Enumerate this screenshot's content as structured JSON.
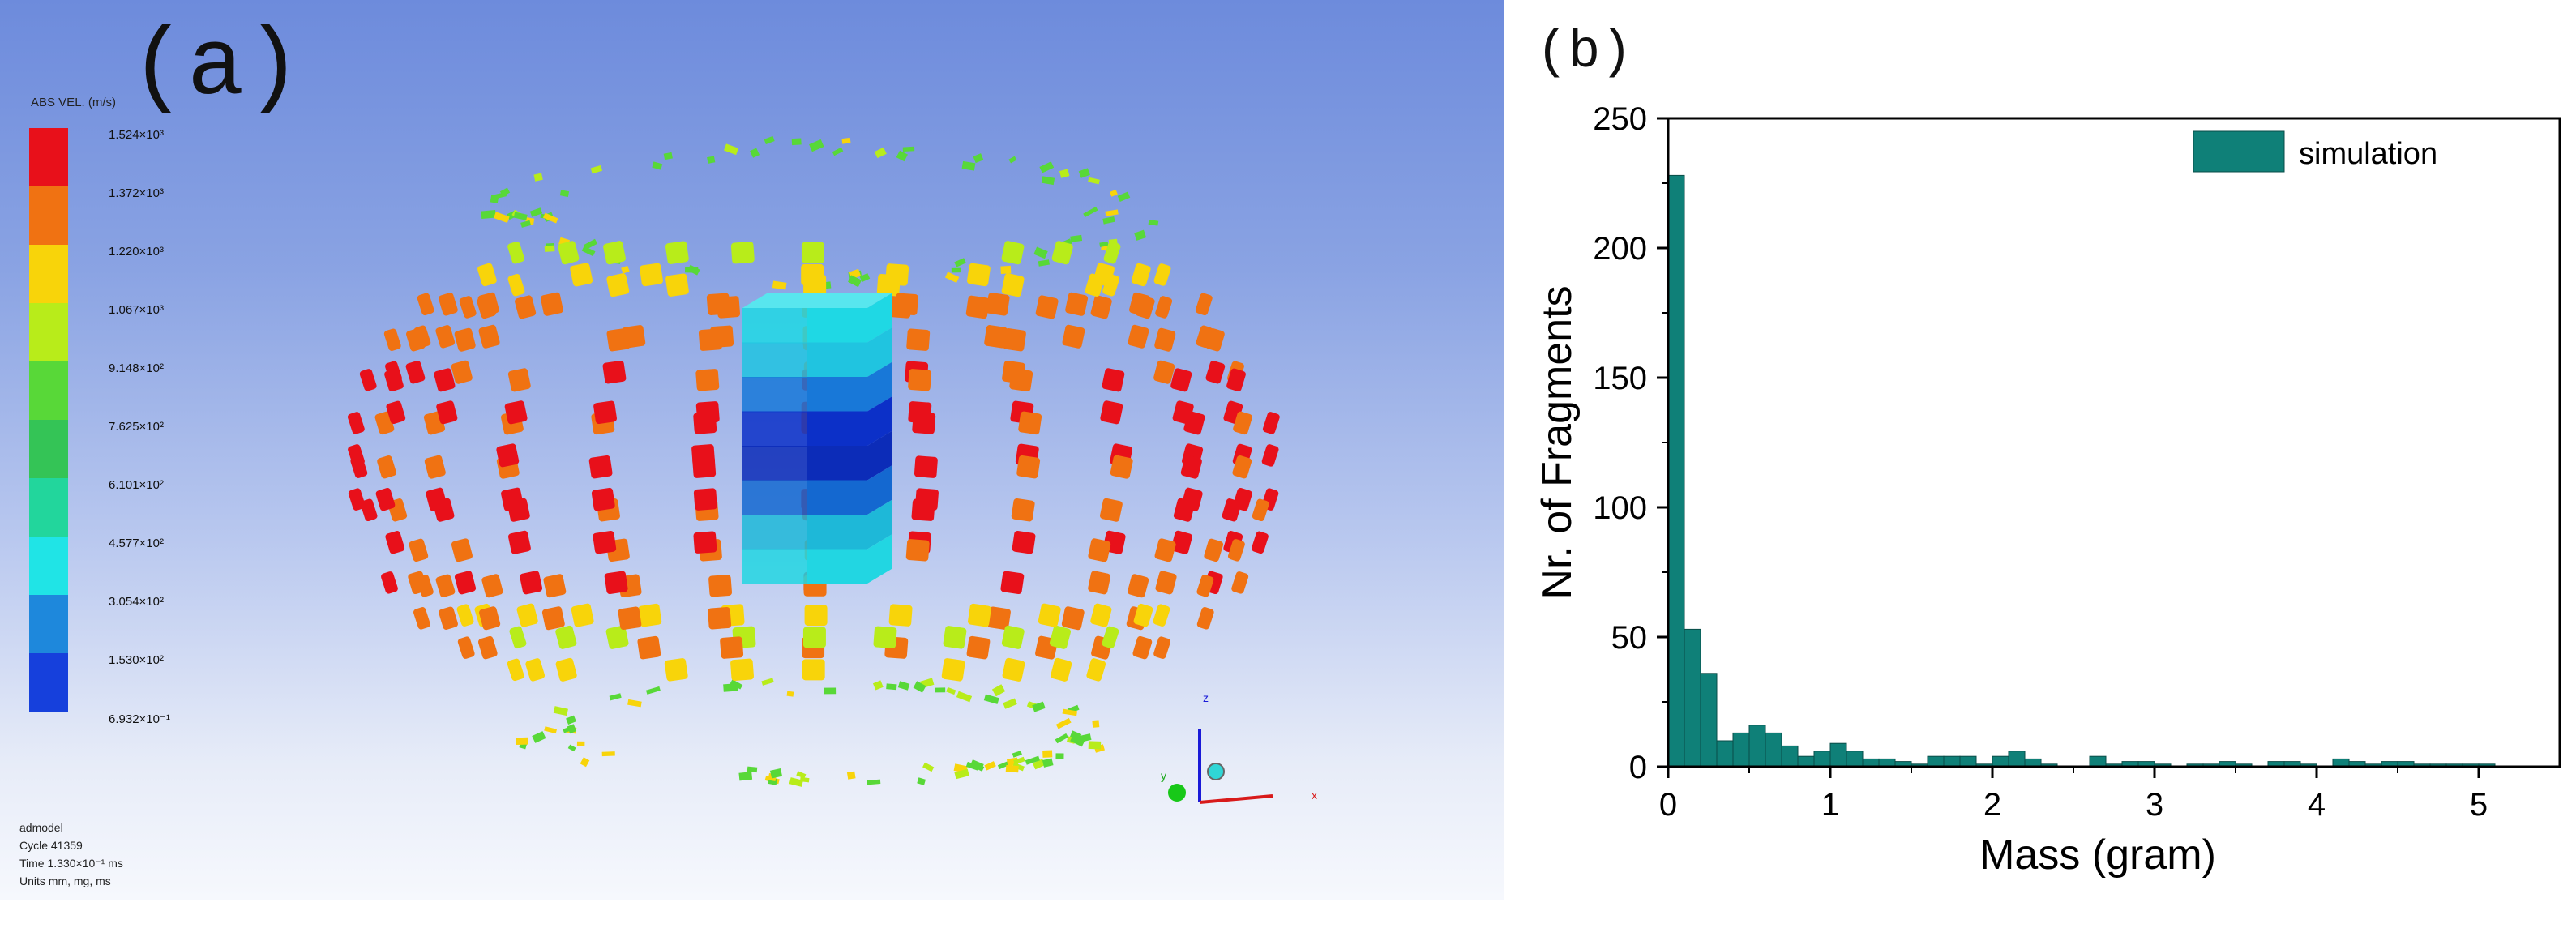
{
  "panel_a": {
    "label": "(a)",
    "legend_title": "ABS VEL. (m/s)",
    "colorbar": [
      {
        "label": "1.524×10³",
        "color": "#e8101a"
      },
      {
        "label": "1.372×10³",
        "color": "#f07212"
      },
      {
        "label": "1.220×10³",
        "color": "#f8d40a"
      },
      {
        "label": "1.067×10³",
        "color": "#b8ec1a"
      },
      {
        "label": "9.148×10²",
        "color": "#58d838"
      },
      {
        "label": "7.625×10²",
        "color": "#34c456"
      },
      {
        "label": "6.101×10²",
        "color": "#22d69c"
      },
      {
        "label": "4.577×10²",
        "color": "#20e4e6"
      },
      {
        "label": "3.054×10²",
        "color": "#1e88dc"
      },
      {
        "label": "1.530×10²",
        "color": "#1640dc"
      }
    ],
    "colorbar_min_label": "6.932×10⁻¹",
    "model_info": [
      "admodel",
      "Cycle 41359",
      "Time 1.330×10⁻¹ ms",
      "Units mm, mg, ms"
    ],
    "axes": {
      "z": "z",
      "y": "y",
      "x": "x"
    }
  },
  "panel_b": {
    "label": "(b)"
  },
  "chart_data": {
    "type": "bar",
    "xlabel": "Mass (gram)",
    "ylabel": "Nr. of Fragments",
    "xlim": [
      0,
      5.5
    ],
    "ylim": [
      0,
      250
    ],
    "xticks": [
      0,
      1,
      2,
      3,
      4,
      5
    ],
    "yticks": [
      0,
      50,
      100,
      150,
      200,
      250
    ],
    "bin_width": 0.1,
    "series": [
      {
        "name": "simulation",
        "color": "#0f8078",
        "values": [
          228,
          53,
          36,
          10,
          13,
          16,
          13,
          8,
          4,
          6,
          9,
          6,
          3,
          3,
          2,
          1,
          4,
          4,
          4,
          1,
          4,
          6,
          3,
          1,
          0,
          0,
          4,
          1,
          2,
          2,
          1,
          0,
          1,
          1,
          2,
          1,
          0,
          2,
          2,
          1,
          0,
          3,
          2,
          1,
          2,
          2,
          1,
          1,
          1,
          1,
          1
        ]
      }
    ]
  }
}
